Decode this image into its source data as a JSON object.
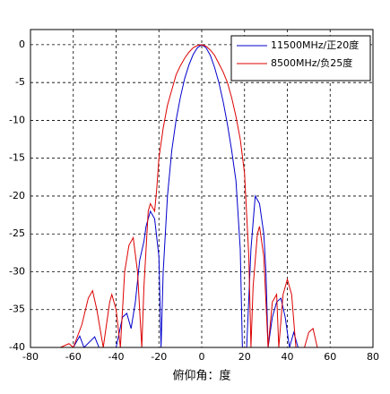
{
  "chart_data": {
    "type": "line",
    "x_label": "俯仰角：度",
    "xlim": [
      -80,
      80
    ],
    "xticks": [
      -80,
      -60,
      -40,
      -20,
      0,
      20,
      40,
      60,
      80
    ],
    "ylim": [
      -40,
      2
    ],
    "yticks": [
      -40,
      -35,
      -30,
      -25,
      -20,
      -15,
      -10,
      -5,
      0
    ],
    "grid": true,
    "legend": "top-right",
    "series": [
      {
        "name": "11500MHz/正20度",
        "color": "#0000cc",
        "x": [
          -60,
          -57,
          -55,
          -50,
          -48,
          -40,
          -37,
          -35,
          -33,
          -31,
          -29,
          -27,
          -26,
          -24,
          -22,
          -20,
          -19,
          -18,
          -16,
          -14,
          -12,
          -10,
          -8,
          -6,
          -4,
          -2,
          0,
          2,
          4,
          6,
          8,
          10,
          12,
          14,
          16,
          18,
          19,
          21,
          23,
          25,
          27,
          29,
          30,
          31,
          33,
          35,
          37,
          39,
          41,
          43,
          45
        ],
        "values": [
          -40,
          -38.5,
          -40,
          -38.6,
          -40,
          -40,
          -36,
          -35.5,
          -37.5,
          -34,
          -28.5,
          -26,
          -24,
          -22,
          -23,
          -28,
          -40,
          -30,
          -20,
          -14,
          -10,
          -7,
          -4.5,
          -2.7,
          -1.3,
          -0.4,
          0,
          -0.4,
          -1.4,
          -3,
          -5,
          -7.5,
          -10.5,
          -14,
          -18,
          -27,
          -40,
          -40,
          -27,
          -20,
          -21,
          -25,
          -30,
          -40,
          -36,
          -34,
          -33.5,
          -36,
          -40,
          -38,
          -40
        ]
      },
      {
        "name": "8500MHz/负25度",
        "color": "#dd0000",
        "x": [
          -66,
          -62,
          -60,
          -56,
          -53,
          -51,
          -49,
          -46,
          -43,
          -42,
          -40,
          -38,
          -36,
          -34,
          -32,
          -30,
          -28,
          -27,
          -25,
          -24,
          -22,
          -21,
          -20,
          -18,
          -16,
          -14,
          -12,
          -10,
          -8,
          -6,
          -4,
          -2,
          0,
          2,
          4,
          6,
          8,
          10,
          12,
          14,
          16,
          18,
          20,
          22,
          23,
          24,
          26,
          27,
          29,
          31,
          33,
          35,
          36,
          38,
          40,
          42,
          44,
          48,
          50,
          52,
          54
        ],
        "values": [
          -40,
          -39.5,
          -40,
          -37,
          -33.5,
          -32.5,
          -35,
          -40,
          -34,
          -33,
          -35,
          -40,
          -30,
          -26.5,
          -25.5,
          -30,
          -40,
          -32,
          -22,
          -21,
          -22,
          -19,
          -15,
          -11,
          -8,
          -6,
          -4,
          -2.8,
          -1.8,
          -1,
          -0.4,
          -0.1,
          0,
          -0.2,
          -0.7,
          -1.4,
          -2.5,
          -3.6,
          -5,
          -7,
          -9.5,
          -12.5,
          -17,
          -28,
          -40,
          -32,
          -25,
          -24,
          -28,
          -40,
          -34,
          -33,
          -40,
          -33,
          -31,
          -33,
          -40,
          -40,
          -38,
          -37.5,
          -40
        ]
      }
    ]
  }
}
